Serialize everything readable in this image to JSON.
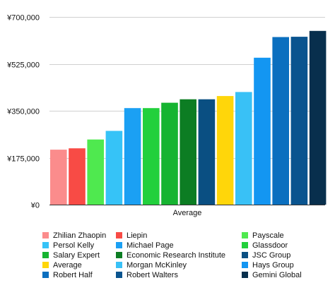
{
  "chart_data": {
    "type": "bar",
    "categories": [
      "Average"
    ],
    "ylim": [
      0,
      700000
    ],
    "yticks": [
      "¥0",
      "¥175,000",
      "¥350,000",
      "¥525,000",
      "¥700,000"
    ],
    "ytick_values": [
      0,
      175000,
      350000,
      525000,
      700000
    ],
    "grid": true,
    "legend_position": "bottom",
    "series": [
      {
        "name": "Zhilian Zhaopin",
        "values": [
          205000
        ],
        "color": "#fb8c8c"
      },
      {
        "name": "Liepin",
        "values": [
          210000
        ],
        "color": "#f84b45"
      },
      {
        "name": "Payscale",
        "values": [
          243000
        ],
        "color": "#4fe94f"
      },
      {
        "name": "Persol Kelly",
        "values": [
          275000
        ],
        "color": "#36c3f7"
      },
      {
        "name": "Michael Page",
        "values": [
          360000
        ],
        "color": "#1ba0f3"
      },
      {
        "name": "Glassdoor",
        "values": [
          360000
        ],
        "color": "#22d03c"
      },
      {
        "name": "Salary Expert",
        "values": [
          380000
        ],
        "color": "#16b431"
      },
      {
        "name": "Economic Research Institute",
        "values": [
          393000
        ],
        "color": "#0c7d23"
      },
      {
        "name": "JSC Group",
        "values": [
          393000
        ],
        "color": "#0a4f82"
      },
      {
        "name": "Average",
        "values": [
          405000
        ],
        "color": "#ffd60a"
      },
      {
        "name": "Morgan McKinley",
        "values": [
          420000
        ],
        "color": "#39c1f6"
      },
      {
        "name": "Hays Group",
        "values": [
          548000
        ],
        "color": "#1396f2"
      },
      {
        "name": "Robert Half",
        "values": [
          625000
        ],
        "color": "#0b6fbf"
      },
      {
        "name": "Robert Walters",
        "values": [
          626000
        ],
        "color": "#0a548f"
      },
      {
        "name": "Gemini Global",
        "values": [
          648000
        ],
        "color": "#082f4d"
      }
    ]
  }
}
